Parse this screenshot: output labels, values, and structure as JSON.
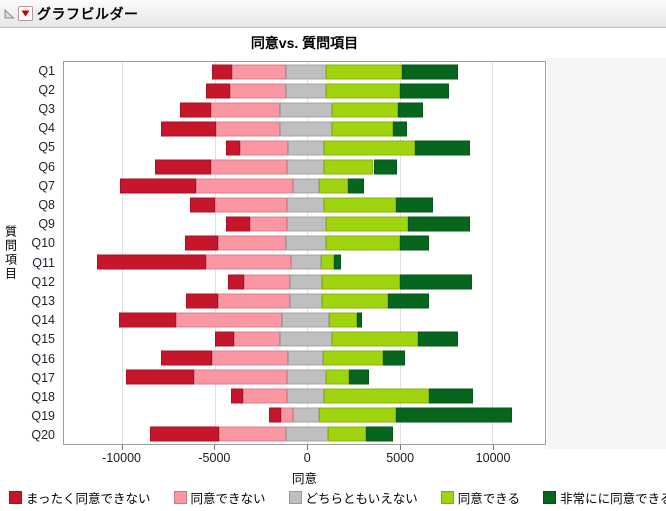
{
  "window": {
    "header": {
      "title": "グラフビルダー",
      "disclosure_icon": "open-disclosure-triangle",
      "menu_icon": "red-triangle-menu"
    }
  },
  "chart_data": {
    "type": "bar",
    "orientation": "horizontal",
    "diverging_stacked": true,
    "title": "同意vs. 質問項目",
    "xlabel": "同意",
    "ylabel": "質問項目",
    "xlim": [
      -13150,
      12850
    ],
    "xticks": [
      -10000,
      -5000,
      0,
      5000,
      10000
    ],
    "xtick_labels": [
      "-10000",
      "-5000",
      "0",
      "5000",
      "10000"
    ],
    "grid": true,
    "legend_position": "bottom",
    "levels": [
      {
        "name": "まったく同意できない",
        "color": "#C5162C"
      },
      {
        "name": "同意できない",
        "color": "#FB96A3"
      },
      {
        "name": "どちらともいえない",
        "color": "#BFBFBF"
      },
      {
        "name": "同意できる",
        "color": "#A0D40E"
      },
      {
        "name": "非常にに同意できる",
        "color": "#07661E"
      }
    ],
    "categories": [
      "Q1",
      "Q2",
      "Q3",
      "Q4",
      "Q5",
      "Q6",
      "Q7",
      "Q8",
      "Q9",
      "Q10",
      "Q11",
      "Q12",
      "Q13",
      "Q14",
      "Q15",
      "Q16",
      "Q17",
      "Q18",
      "Q19",
      "Q20"
    ],
    "stack_boundaries": [
      [
        -5130,
        -4050,
        -1130,
        1020,
        5130,
        8130
      ],
      [
        -5490,
        -4200,
        -1130,
        990,
        4990,
        7680
      ],
      [
        -6900,
        -5180,
        -1500,
        1350,
        4890,
        6280
      ],
      [
        -7880,
        -4950,
        -1500,
        1350,
        4620,
        5380
      ],
      [
        -4410,
        -3650,
        -1050,
        930,
        5800,
        8800
      ],
      [
        -8210,
        -5180,
        -1100,
        930,
        3580,
        4860
      ],
      [
        -10100,
        -6030,
        -780,
        660,
        2190,
        3040
      ],
      [
        -6320,
        -5010,
        -1100,
        930,
        4810,
        6780
      ],
      [
        -4370,
        -3080,
        -1100,
        1030,
        5430,
        8800
      ],
      [
        -6630,
        -4830,
        -1130,
        990,
        4990,
        6600
      ],
      [
        -11390,
        -5450,
        -860,
        760,
        1470,
        1840
      ],
      [
        -4290,
        -3420,
        -960,
        810,
        4990,
        8910
      ],
      [
        -6570,
        -4830,
        -960,
        810,
        4350,
        6600
      ],
      [
        -10170,
        -7110,
        -1350,
        1170,
        2700,
        2970
      ],
      [
        -5010,
        -3980,
        -1500,
        1350,
        5970,
        8130
      ],
      [
        -7880,
        -5130,
        -1050,
        840,
        4120,
        5310
      ],
      [
        -9810,
        -6120,
        -1100,
        990,
        2280,
        3360
      ],
      [
        -4140,
        -3480,
        -1100,
        930,
        6570,
        8980
      ],
      [
        -2070,
        -1440,
        -780,
        630,
        4810,
        11050
      ],
      [
        -8520,
        -4770,
        -1170,
        1110,
        3190,
        4620
      ]
    ]
  }
}
